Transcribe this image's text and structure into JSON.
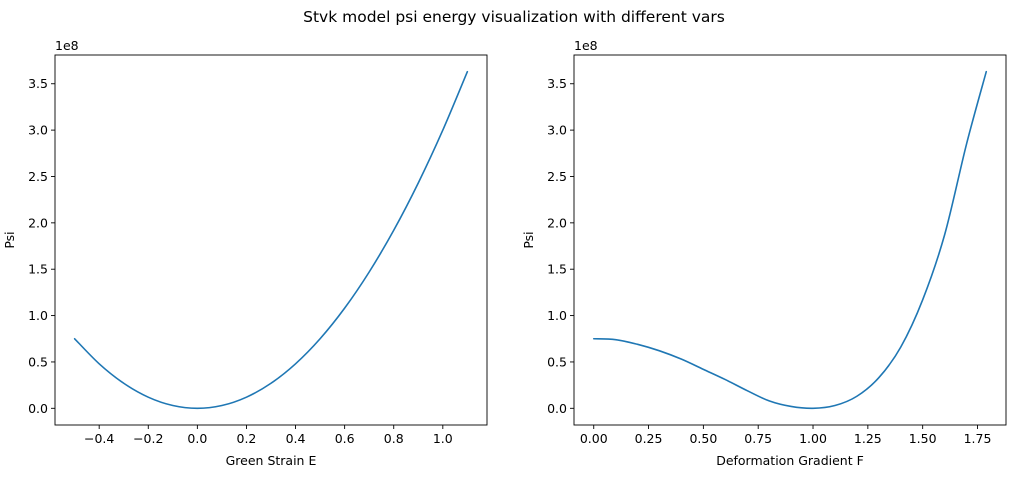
{
  "figure": {
    "title": "Stvk model psi energy visualization with different vars"
  },
  "chart_data": [
    {
      "type": "line",
      "title": "",
      "xlabel": "Green Strain E",
      "ylabel": "Psi",
      "y_offset_label": "1e8",
      "x_ticks": [
        -0.4,
        -0.2,
        0.0,
        0.2,
        0.4,
        0.6,
        0.8,
        1.0
      ],
      "x_tick_labels": [
        "−0.4",
        "−0.2",
        "0.0",
        "0.2",
        "0.4",
        "0.6",
        "0.8",
        "1.0"
      ],
      "y_ticks": [
        0.0,
        0.5,
        1.0,
        1.5,
        2.0,
        2.5,
        3.0,
        3.5
      ],
      "y_tick_labels": [
        "0.0",
        "0.5",
        "1.0",
        "1.5",
        "2.0",
        "2.5",
        "3.0",
        "3.5"
      ],
      "xlim": [
        -0.58,
        1.18
      ],
      "ylim": [
        -0.18,
        3.81
      ],
      "grid": false,
      "color": "#1f77b4",
      "series": [
        {
          "name": "",
          "x": [
            -0.5,
            -0.4,
            -0.3,
            -0.2,
            -0.1,
            0.0,
            0.1,
            0.2,
            0.3,
            0.4,
            0.5,
            0.6,
            0.7,
            0.8,
            0.9,
            1.0,
            1.1
          ],
          "y": [
            0.75,
            0.48,
            0.27,
            0.12,
            0.03,
            0.0,
            0.03,
            0.12,
            0.27,
            0.48,
            0.75,
            1.08,
            1.47,
            1.92,
            2.43,
            3.0,
            3.63
          ]
        }
      ]
    },
    {
      "type": "line",
      "title": "",
      "xlabel": "Deformation Gradient F",
      "ylabel": "Psi",
      "y_offset_label": "1e8",
      "x_ticks": [
        0.0,
        0.25,
        0.5,
        0.75,
        1.0,
        1.25,
        1.5,
        1.75
      ],
      "x_tick_labels": [
        "0.00",
        "0.25",
        "0.50",
        "0.75",
        "1.00",
        "1.25",
        "1.50",
        "1.75"
      ],
      "y_ticks": [
        0.0,
        0.5,
        1.0,
        1.5,
        2.0,
        2.5,
        3.0,
        3.5
      ],
      "y_tick_labels": [
        "0.0",
        "0.5",
        "1.0",
        "1.5",
        "2.0",
        "2.5",
        "3.0",
        "3.5"
      ],
      "xlim": [
        -0.09,
        1.88
      ],
      "ylim": [
        -0.18,
        3.81
      ],
      "grid": false,
      "color": "#1f77b4",
      "series": [
        {
          "name": "",
          "x": [
            0.0,
            0.1,
            0.2,
            0.3,
            0.4,
            0.5,
            0.6,
            0.7,
            0.8,
            0.9,
            1.0,
            1.1,
            1.2,
            1.3,
            1.4,
            1.5,
            1.6,
            1.7,
            1.79
          ],
          "y": [
            0.75,
            0.74,
            0.69,
            0.62,
            0.53,
            0.42,
            0.31,
            0.19,
            0.08,
            0.02,
            0.0,
            0.03,
            0.13,
            0.33,
            0.66,
            1.17,
            1.87,
            2.85,
            3.63
          ]
        }
      ]
    }
  ]
}
